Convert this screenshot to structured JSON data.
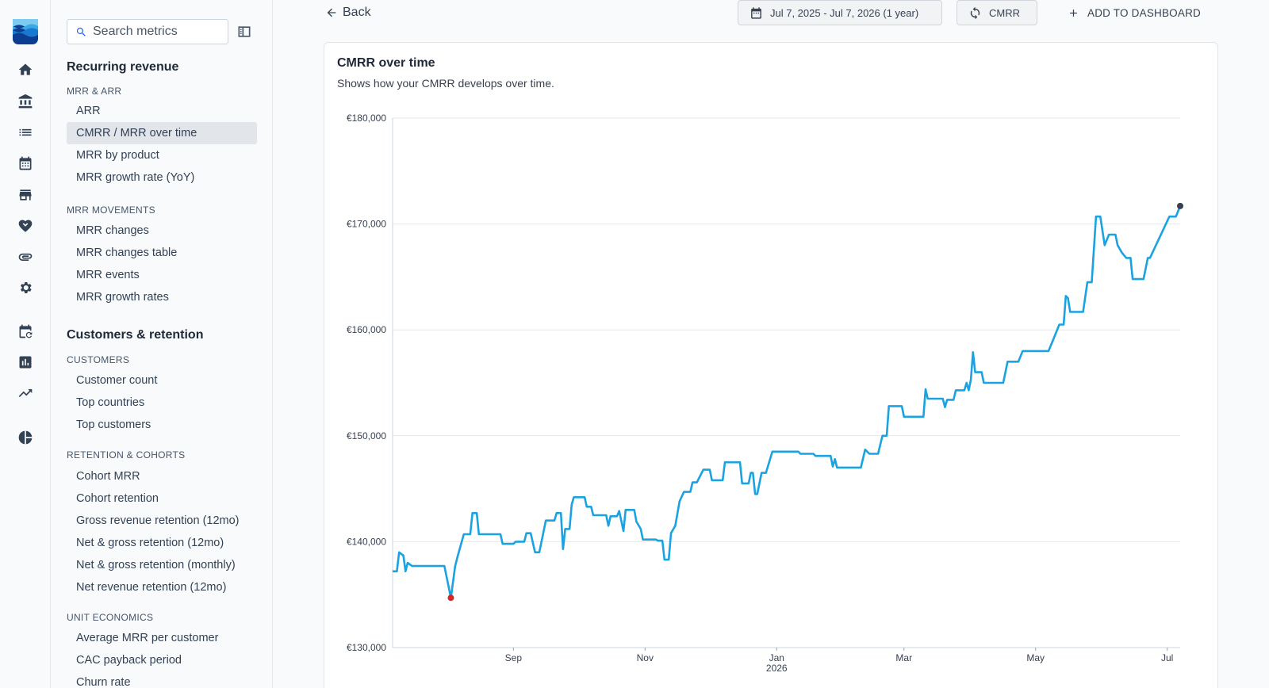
{
  "rail": {
    "icons": [
      "home-icon",
      "bank-icon",
      "list-icon",
      "calendar-icon",
      "store-icon",
      "handshake-icon",
      "attachment-icon",
      "gear-icon",
      "calendar-refresh-icon",
      "bar-chart-icon",
      "trending-up-icon",
      "pie-chart-icon"
    ]
  },
  "sidebar": {
    "search_placeholder": "Search metrics",
    "sections": [
      {
        "title": "Recurring revenue",
        "groups": [
          {
            "title": "MRR & ARR",
            "items": [
              "ARR",
              "CMRR / MRR over time",
              "MRR by product",
              "MRR growth rate (YoY)"
            ]
          },
          {
            "title": "MRR MOVEMENTS",
            "items": [
              "MRR changes",
              "MRR changes table",
              "MRR events",
              "MRR growth rates"
            ]
          }
        ]
      },
      {
        "title": "Customers & retention",
        "groups": [
          {
            "title": "CUSTOMERS",
            "items": [
              "Customer count",
              "Top countries",
              "Top customers"
            ]
          },
          {
            "title": "RETENTION & COHORTS",
            "items": [
              "Cohort MRR",
              "Cohort retention",
              "Gross revenue retention (12mo)",
              "Net & gross retention (12mo)",
              "Net & gross retention (monthly)",
              "Net revenue retention (12mo)"
            ]
          },
          {
            "title": "UNIT ECONOMICS",
            "items": [
              "Average MRR per customer",
              "CAC payback period",
              "Churn rate"
            ]
          }
        ]
      }
    ],
    "active_item": "CMRR / MRR over time"
  },
  "header": {
    "back_label": "Back",
    "date_range_label": "Jul 7, 2025 - Jul 7, 2026 (1 year)",
    "metric_toggle_label": "CMRR",
    "add_dashboard_label": "ADD TO DASHBOARD"
  },
  "chart_card": {
    "title": "CMRR over time",
    "subtitle": "Shows how your CMRR develops over time."
  },
  "chart_data": {
    "type": "line",
    "x_ticks": [
      {
        "label": "Sep",
        "year": "",
        "date": "2025-09-01"
      },
      {
        "label": "Nov",
        "year": "",
        "date": "2025-11-01"
      },
      {
        "label": "Jan",
        "year": "2026",
        "date": "2026-01-01"
      },
      {
        "label": "Mar",
        "year": "",
        "date": "2026-03-01"
      },
      {
        "label": "May",
        "year": "",
        "date": "2026-05-01"
      },
      {
        "label": "Jul",
        "year": "",
        "date": "2026-07-01"
      }
    ],
    "y_ticks": [
      "€130,000",
      "€140,000",
      "€150,000",
      "€160,000",
      "€170,000",
      "€180,000"
    ],
    "ylim": [
      130000,
      180000
    ],
    "xlim": [
      "2025-07-07",
      "2026-07-07"
    ],
    "grid": true,
    "line_color": "#1aa3e0",
    "min_marker_color": "#dc2626",
    "end_marker_color": "#374151",
    "min_point": {
      "date": "2025-08-03",
      "value": 134700
    },
    "end_point": {
      "date": "2026-07-07",
      "value": 171700
    },
    "points": [
      [
        "2025-07-07",
        137200
      ],
      [
        "2025-07-09",
        137200
      ],
      [
        "2025-07-10",
        139000
      ],
      [
        "2025-07-12",
        138700
      ],
      [
        "2025-07-13",
        137200
      ],
      [
        "2025-07-14",
        138000
      ],
      [
        "2025-07-16",
        137700
      ],
      [
        "2025-07-30",
        137700
      ],
      [
        "2025-07-31",
        137700
      ],
      [
        "2025-08-03",
        134700
      ],
      [
        "2025-08-05",
        137700
      ],
      [
        "2025-08-06",
        138500
      ],
      [
        "2025-08-09",
        140700
      ],
      [
        "2025-08-12",
        140700
      ],
      [
        "2025-08-13",
        142700
      ],
      [
        "2025-08-15",
        142700
      ],
      [
        "2025-08-16",
        140700
      ],
      [
        "2025-08-26",
        140700
      ],
      [
        "2025-08-27",
        139800
      ],
      [
        "2025-09-01",
        139800
      ],
      [
        "2025-09-02",
        140000
      ],
      [
        "2025-09-06",
        140000
      ],
      [
        "2025-09-07",
        140800
      ],
      [
        "2025-09-09",
        140800
      ],
      [
        "2025-09-11",
        139000
      ],
      [
        "2025-09-13",
        139000
      ],
      [
        "2025-09-16",
        142000
      ],
      [
        "2025-09-20",
        142000
      ],
      [
        "2025-09-21",
        142700
      ],
      [
        "2025-09-23",
        142700
      ],
      [
        "2025-09-24",
        139300
      ],
      [
        "2025-09-25",
        141200
      ],
      [
        "2025-09-27",
        141200
      ],
      [
        "2025-09-28",
        143500
      ],
      [
        "2025-09-29",
        144200
      ],
      [
        "2025-10-04",
        144200
      ],
      [
        "2025-10-05",
        143300
      ],
      [
        "2025-10-07",
        143300
      ],
      [
        "2025-10-08",
        142500
      ],
      [
        "2025-10-14",
        142500
      ],
      [
        "2025-10-15",
        141500
      ],
      [
        "2025-10-16",
        142400
      ],
      [
        "2025-10-19",
        142400
      ],
      [
        "2025-10-20",
        142900
      ],
      [
        "2025-10-22",
        141000
      ],
      [
        "2025-10-23",
        143000
      ],
      [
        "2025-10-27",
        143000
      ],
      [
        "2025-10-28",
        141900
      ],
      [
        "2025-10-30",
        141200
      ],
      [
        "2025-10-31",
        140200
      ],
      [
        "2025-11-06",
        140200
      ],
      [
        "2025-11-07",
        140100
      ],
      [
        "2025-11-09",
        140100
      ],
      [
        "2025-11-10",
        138300
      ],
      [
        "2025-11-12",
        138300
      ],
      [
        "2025-11-13",
        140800
      ],
      [
        "2025-11-15",
        141500
      ],
      [
        "2025-11-17",
        143800
      ],
      [
        "2025-11-19",
        144700
      ],
      [
        "2025-11-22",
        144700
      ],
      [
        "2025-11-23",
        145600
      ],
      [
        "2025-11-25",
        145600
      ],
      [
        "2025-11-28",
        146800
      ],
      [
        "2025-12-01",
        146800
      ],
      [
        "2025-12-02",
        145800
      ],
      [
        "2025-12-07",
        145800
      ],
      [
        "2025-12-08",
        147500
      ],
      [
        "2025-12-15",
        147500
      ],
      [
        "2025-12-16",
        145500
      ],
      [
        "2025-12-19",
        145500
      ],
      [
        "2025-12-20",
        146500
      ],
      [
        "2025-12-21",
        146500
      ],
      [
        "2025-12-22",
        144500
      ],
      [
        "2025-12-23",
        144500
      ],
      [
        "2025-12-25",
        146500
      ],
      [
        "2025-12-27",
        146500
      ],
      [
        "2025-12-30",
        148500
      ],
      [
        "2026-01-11",
        148500
      ],
      [
        "2026-01-12",
        148300
      ],
      [
        "2026-01-18",
        148300
      ],
      [
        "2026-01-19",
        148100
      ],
      [
        "2026-01-26",
        148100
      ],
      [
        "2026-01-27",
        147100
      ],
      [
        "2026-01-28",
        147800
      ],
      [
        "2026-01-29",
        147000
      ],
      [
        "2026-02-09",
        147000
      ],
      [
        "2026-02-11",
        148700
      ],
      [
        "2026-02-13",
        148300
      ],
      [
        "2026-02-17",
        148300
      ],
      [
        "2026-02-19",
        150000
      ],
      [
        "2026-02-21",
        150000
      ],
      [
        "2026-02-22",
        152800
      ],
      [
        "2026-02-28",
        152800
      ],
      [
        "2026-03-01",
        151800
      ],
      [
        "2026-03-10",
        151800
      ],
      [
        "2026-03-11",
        154400
      ],
      [
        "2026-03-12",
        153500
      ],
      [
        "2026-03-19",
        153500
      ],
      [
        "2026-03-20",
        152700
      ],
      [
        "2026-03-21",
        153400
      ],
      [
        "2026-03-24",
        153400
      ],
      [
        "2026-03-25",
        154300
      ],
      [
        "2026-03-29",
        154300
      ],
      [
        "2026-03-30",
        155000
      ],
      [
        "2026-03-31",
        154300
      ],
      [
        "2026-04-01",
        155300
      ],
      [
        "2026-04-02",
        157900
      ],
      [
        "2026-04-03",
        156000
      ],
      [
        "2026-04-06",
        156000
      ],
      [
        "2026-04-07",
        155000
      ],
      [
        "2026-04-16",
        155000
      ],
      [
        "2026-04-18",
        157000
      ],
      [
        "2026-04-23",
        157000
      ],
      [
        "2026-04-25",
        158000
      ],
      [
        "2026-05-07",
        158000
      ],
      [
        "2026-05-09",
        159000
      ],
      [
        "2026-05-10",
        159500
      ],
      [
        "2026-05-12",
        160500
      ],
      [
        "2026-05-14",
        160500
      ],
      [
        "2026-05-15",
        163200
      ],
      [
        "2026-05-16",
        163000
      ],
      [
        "2026-05-17",
        161700
      ],
      [
        "2026-05-23",
        161700
      ],
      [
        "2026-05-25",
        164500
      ],
      [
        "2026-05-27",
        164500
      ],
      [
        "2026-05-29",
        170700
      ],
      [
        "2026-05-31",
        170700
      ],
      [
        "2026-06-02",
        168000
      ],
      [
        "2026-06-04",
        169000
      ],
      [
        "2026-06-07",
        169000
      ],
      [
        "2026-06-08",
        168000
      ],
      [
        "2026-06-10",
        167300
      ],
      [
        "2026-06-12",
        166800
      ],
      [
        "2026-06-14",
        166800
      ],
      [
        "2026-06-15",
        164800
      ],
      [
        "2026-06-20",
        164800
      ],
      [
        "2026-06-22",
        166800
      ],
      [
        "2026-06-23",
        166800
      ],
      [
        "2026-07-02",
        170700
      ],
      [
        "2026-07-05",
        170700
      ],
      [
        "2026-07-07",
        171700
      ]
    ]
  }
}
